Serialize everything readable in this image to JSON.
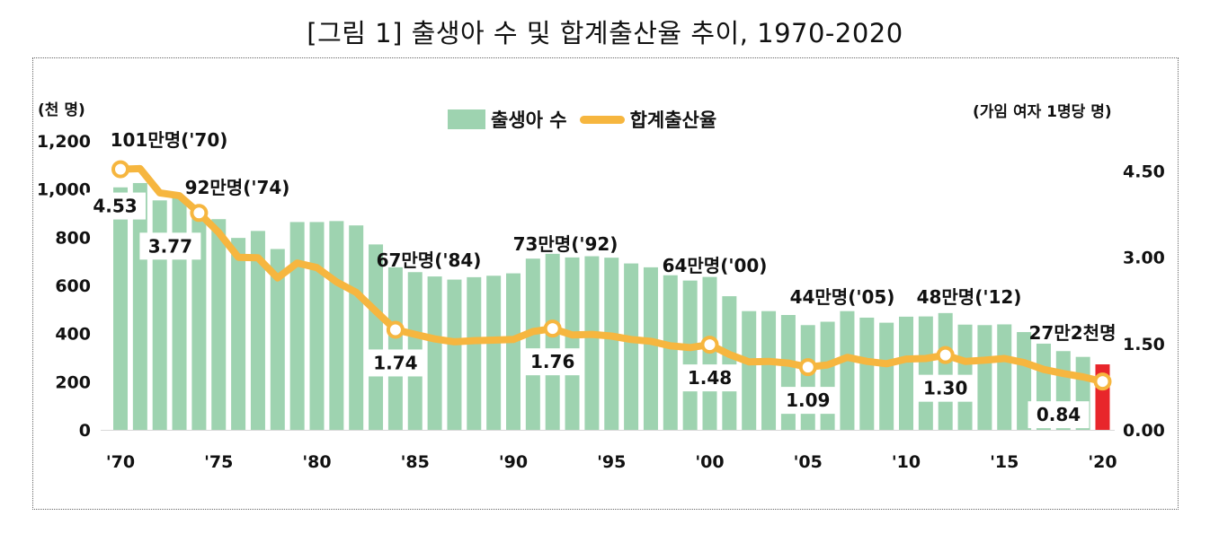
{
  "title": "[그림 1] 출생아 수 및 합계출산율 추이, 1970-2020",
  "colors": {
    "bars": "#9ed3b0",
    "highlight_bar": "#e8262b",
    "line": "#f6b63f",
    "marker_fill": "#ffffff"
  },
  "chart_data": {
    "type": "bar+line",
    "years": [
      1970,
      1971,
      1972,
      1973,
      1974,
      1975,
      1976,
      1977,
      1978,
      1979,
      1980,
      1981,
      1982,
      1983,
      1984,
      1985,
      1986,
      1987,
      1988,
      1989,
      1990,
      1991,
      1992,
      1993,
      1994,
      1995,
      1996,
      1997,
      1998,
      1999,
      2000,
      2001,
      2002,
      2003,
      2004,
      2005,
      2006,
      2007,
      2008,
      2009,
      2010,
      2011,
      2012,
      2013,
      2014,
      2015,
      2016,
      2017,
      2018,
      2019,
      2020
    ],
    "x_tick_labels": [
      "'70",
      "'75",
      "'80",
      "'85",
      "'90",
      "'95",
      "'00",
      "'05",
      "'10",
      "'15",
      "'20"
    ],
    "left_axis": {
      "label": "(천 명)",
      "ticks": [
        "0",
        "200",
        "400",
        "600",
        "800",
        "1,000",
        "1,200"
      ],
      "range": [
        0,
        1200
      ]
    },
    "right_axis": {
      "label": "(가임 여자 1명당 명)",
      "ticks": [
        "0.00",
        "1.50",
        "3.00",
        "4.50"
      ],
      "range": [
        0,
        4.5
      ]
    },
    "legend": {
      "bars": "출생아 수",
      "line": "합계출산율"
    },
    "series": [
      {
        "name": "출생아 수",
        "axis": "left",
        "type": "bar",
        "values": [
          1007,
          1025,
          953,
          966,
          923,
          875,
          797,
          826,
          751,
          863,
          863,
          867,
          849,
          770,
          675,
          655,
          637,
          624,
          634,
          640,
          650,
          711,
          731,
          716,
          721,
          715,
          691,
          675,
          642,
          620,
          635,
          555,
          493,
          493,
          477,
          435,
          449,
          493,
          466,
          445,
          470,
          471,
          485,
          437,
          435,
          438,
          406,
          358,
          327,
          303,
          272
        ]
      },
      {
        "name": "합계출산율",
        "axis": "right",
        "type": "line",
        "values": [
          4.53,
          4.54,
          4.12,
          4.07,
          3.77,
          3.43,
          3.0,
          2.99,
          2.64,
          2.9,
          2.82,
          2.57,
          2.39,
          2.06,
          1.74,
          1.66,
          1.58,
          1.53,
          1.55,
          1.56,
          1.57,
          1.71,
          1.76,
          1.65,
          1.66,
          1.63,
          1.57,
          1.54,
          1.46,
          1.43,
          1.48,
          1.31,
          1.18,
          1.19,
          1.16,
          1.09,
          1.13,
          1.26,
          1.19,
          1.15,
          1.23,
          1.24,
          1.3,
          1.19,
          1.21,
          1.24,
          1.17,
          1.05,
          0.98,
          0.92,
          0.84
        ]
      }
    ],
    "birth_annotations": [
      {
        "year": 1970,
        "text": "101만명('70)"
      },
      {
        "year": 1974,
        "text": "92만명('74)"
      },
      {
        "year": 1984,
        "text": "67만명('84)"
      },
      {
        "year": 1992,
        "text": "73만명('92)"
      },
      {
        "year": 2000,
        "text": "64만명('00)"
      },
      {
        "year": 2005,
        "text": "44만명('05)"
      },
      {
        "year": 2012,
        "text": "48만명('12)"
      },
      {
        "year": 2020,
        "text": "27만2천명"
      }
    ],
    "tfr_labels": [
      {
        "year": 1970,
        "text": "4.53"
      },
      {
        "year": 1974,
        "text": "3.77"
      },
      {
        "year": 1984,
        "text": "1.74"
      },
      {
        "year": 1992,
        "text": "1.76"
      },
      {
        "year": 2000,
        "text": "1.48"
      },
      {
        "year": 2005,
        "text": "1.09"
      },
      {
        "year": 2012,
        "text": "1.30"
      },
      {
        "year": 2020,
        "text": "0.84"
      }
    ],
    "marker_years": [
      1970,
      1974,
      1984,
      1992,
      2000,
      2005,
      2012,
      2020
    ],
    "highlight_year": 2020
  }
}
